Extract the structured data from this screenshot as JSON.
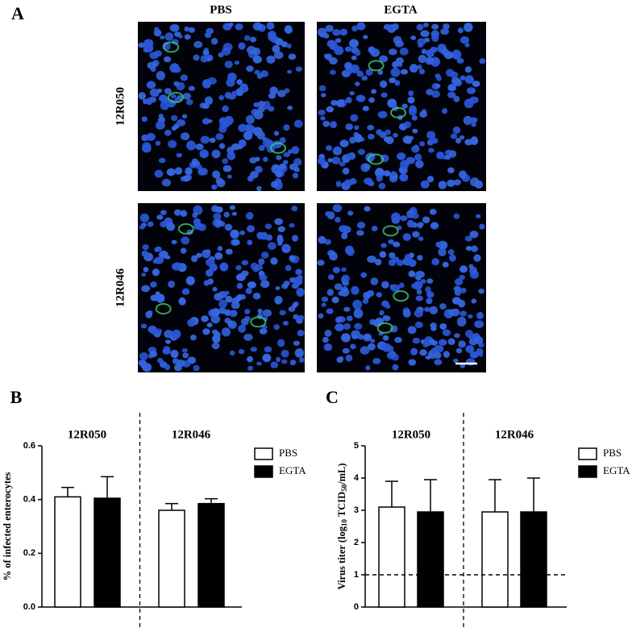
{
  "figure_a": {
    "panel_label": "A",
    "columns": [
      "PBS",
      "EGTA"
    ],
    "rows": [
      "12R050",
      "12R046"
    ]
  },
  "chart_data": [
    {
      "type": "bar",
      "panel_label": "B",
      "y_label": "% of infected enterocytes",
      "categories": [
        "12R050",
        "12R046"
      ],
      "series": [
        {
          "name": "PBS",
          "color": "#ffffff",
          "values": [
            0.41,
            0.36
          ],
          "errors": [
            0.035,
            0.025
          ]
        },
        {
          "name": "EGTA",
          "color": "#000000",
          "values": [
            0.405,
            0.385
          ],
          "errors": [
            0.08,
            0.018
          ]
        }
      ],
      "ylim": [
        0,
        0.6
      ],
      "yticks": [
        {
          "value": 0,
          "label": "0.0"
        },
        0.2,
        0.4,
        0.6
      ],
      "legend": "right"
    },
    {
      "type": "bar",
      "panel_label": "C",
      "y_label_parts": [
        "Virus titer (log",
        "10",
        " TCID",
        "50",
        "/mL)"
      ],
      "categories": [
        "12R050",
        "12R046"
      ],
      "series": [
        {
          "name": "PBS",
          "color": "#ffffff",
          "values": [
            3.1,
            2.95
          ],
          "errors": [
            0.8,
            1.0
          ]
        },
        {
          "name": "EGTA",
          "color": "#000000",
          "values": [
            2.95,
            2.95
          ],
          "errors": [
            1.0,
            1.05
          ]
        }
      ],
      "ylim": [
        0,
        5
      ],
      "yticks": [
        0,
        1,
        2,
        3,
        4,
        5
      ],
      "reference_line": 1,
      "legend": "right"
    }
  ]
}
